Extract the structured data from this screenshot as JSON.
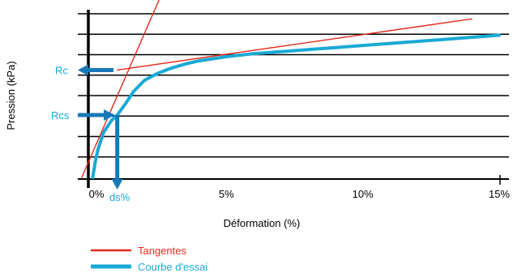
{
  "chart_data": {
    "type": "line",
    "xlabel": "Déformation (%)",
    "ylabel": "Pression (kPa)",
    "xlim": [
      0,
      15
    ],
    "x_ticks": [
      {
        "value": 0,
        "label": "0%"
      },
      {
        "value": 5,
        "label": "5%"
      },
      {
        "value": 10,
        "label": "10%"
      },
      {
        "value": 15,
        "label": "15%"
      }
    ],
    "ylim": [
      0,
      8
    ],
    "grid_y": [
      1,
      2,
      3,
      4,
      5,
      6,
      7,
      8
    ],
    "grid": true,
    "series": [
      {
        "name": "Courbe d'essai",
        "color": "#19a9d6",
        "x": [
          0.1,
          0.2,
          0.3,
          0.5,
          0.8,
          1.0,
          1.3,
          1.6,
          2.0,
          2.5,
          3.0,
          3.5,
          4.0,
          5.0,
          6.0,
          7.0,
          8.0,
          9.0,
          10.0,
          11.0,
          12.0,
          13.0,
          14.0,
          15.0
        ],
        "y": [
          0.0,
          0.8,
          1.4,
          2.2,
          2.8,
          3.05,
          3.6,
          4.2,
          4.75,
          5.1,
          5.35,
          5.55,
          5.7,
          5.9,
          6.05,
          6.15,
          6.25,
          6.35,
          6.45,
          6.55,
          6.65,
          6.75,
          6.85,
          6.95
        ]
      },
      {
        "name": "Tangentes",
        "color": "#e02b1f",
        "x": [
          -0.3,
          2.9
        ],
        "y": [
          0.0,
          9.8
        ]
      },
      {
        "name": "Tangentes",
        "color": "#e02b1f",
        "x": [
          1.0,
          14.0
        ],
        "y": [
          5.25,
          7.75
        ]
      }
    ],
    "annotations": [
      {
        "label": "Rc",
        "y": 5.25,
        "color": "#19a9d6"
      },
      {
        "label": "Rcs",
        "y": 3.05,
        "color": "#19a9d6"
      },
      {
        "label": "ds%",
        "x": 1.0,
        "color": "#19a9d6"
      }
    ],
    "legend": [
      {
        "label": "Tangentes",
        "color": "#e02b1f"
      },
      {
        "label": "Courbe d'essai",
        "color": "#19a9d6"
      }
    ],
    "legend_position": "bottom-left"
  }
}
